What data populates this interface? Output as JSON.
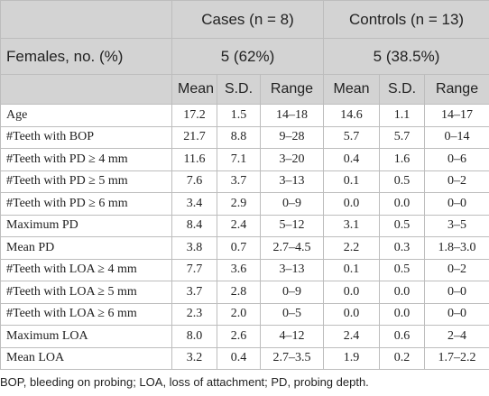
{
  "table": {
    "groups": [
      "Cases (n = 8)",
      "Controls (n = 13)"
    ],
    "females": {
      "label": "Females, no. (%)",
      "values": [
        "5 (62%)",
        "5 (38.5%)"
      ]
    },
    "columns": [
      "Mean",
      "S.D.",
      "Range",
      "Mean",
      "S.D.",
      "Range"
    ],
    "rows": [
      [
        "Age",
        "17.2",
        "1.5",
        "14–18",
        "14.6",
        "1.1",
        "14–17"
      ],
      [
        "#Teeth with BOP",
        "21.7",
        "8.8",
        "9–28",
        "5.7",
        "5.7",
        "0–14"
      ],
      [
        "#Teeth with PD ≥ 4 mm",
        "11.6",
        "7.1",
        "3–20",
        "0.4",
        "1.6",
        "0–6"
      ],
      [
        "#Teeth with PD ≥ 5 mm",
        "7.6",
        "3.7",
        "3–13",
        "0.1",
        "0.5",
        "0–2"
      ],
      [
        "#Teeth with PD ≥ 6 mm",
        "3.4",
        "2.9",
        "0–9",
        "0.0",
        "0.0",
        "0–0"
      ],
      [
        "Maximum PD",
        "8.4",
        "2.4",
        "5–12",
        "3.1",
        "0.5",
        "3–5"
      ],
      [
        "Mean PD",
        "3.8",
        "0.7",
        "2.7–4.5",
        "2.2",
        "0.3",
        "1.8–3.0"
      ],
      [
        "#Teeth with LOA ≥ 4 mm",
        "7.7",
        "3.6",
        "3–13",
        "0.1",
        "0.5",
        "0–2"
      ],
      [
        "#Teeth with LOA ≥ 5 mm",
        "3.7",
        "2.8",
        "0–9",
        "0.0",
        "0.0",
        "0–0"
      ],
      [
        "#Teeth with LOA ≥ 6 mm",
        "2.3",
        "2.0",
        "0–5",
        "0.0",
        "0.0",
        "0–0"
      ],
      [
        "Maximum LOA",
        "8.0",
        "2.6",
        "4–12",
        "2.4",
        "0.6",
        "2–4"
      ],
      [
        "Mean LOA",
        "3.2",
        "0.4",
        "2.7–3.5",
        "1.9",
        "0.2",
        "1.7–2.2"
      ]
    ]
  },
  "footnote": "BOP, bleeding on probing; LOA, loss of attachment; PD, probing depth."
}
